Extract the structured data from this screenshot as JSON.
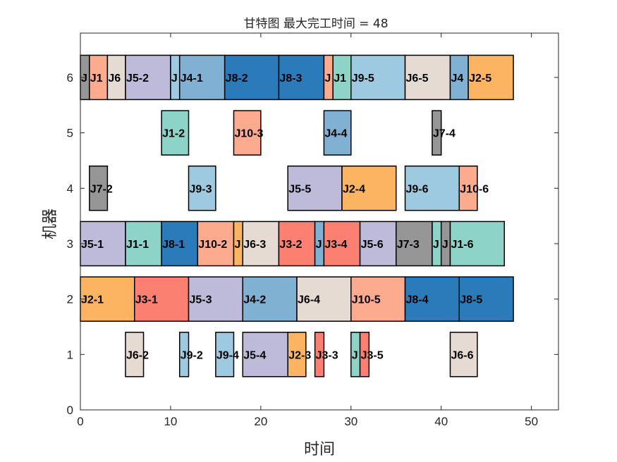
{
  "chart_data": {
    "type": "bar",
    "orientation": "horizontal-gantt",
    "title": "甘特图 最大完工时间 = 48",
    "xlabel": "时间",
    "ylabel": "机器",
    "xlim": [
      0,
      53
    ],
    "ylim": [
      0,
      6.8
    ],
    "xticks": [
      0,
      10,
      20,
      30,
      40,
      50
    ],
    "yticks": [
      0,
      1,
      2,
      3,
      4,
      5,
      6
    ],
    "bar_height": 0.8,
    "grid": false,
    "job_colors": {
      "J1": "#8dd3c7",
      "J2": "#fdb462",
      "J3": "#fb8072",
      "J4": "#80b1d3",
      "J5": "#bebada",
      "J6": "#e6dbd3",
      "J7": "#969696",
      "J8": "#2b7bba",
      "J9": "#9ecae1",
      "J10": "#fcab8f"
    },
    "tasks": [
      {
        "machine": 6,
        "job": "J7",
        "label": "J",
        "start": 0,
        "end": 1
      },
      {
        "machine": 6,
        "job": "J10",
        "label": "J1",
        "start": 1,
        "end": 3
      },
      {
        "machine": 6,
        "job": "J6",
        "label": "J6",
        "start": 3,
        "end": 5
      },
      {
        "machine": 6,
        "job": "J5",
        "label": "J5-2",
        "start": 5,
        "end": 10
      },
      {
        "machine": 6,
        "job": "J9",
        "label": "J",
        "start": 10,
        "end": 11
      },
      {
        "machine": 6,
        "job": "J4",
        "label": "J4-1",
        "start": 11,
        "end": 16
      },
      {
        "machine": 6,
        "job": "J8",
        "label": "J8-2",
        "start": 16,
        "end": 22
      },
      {
        "machine": 6,
        "job": "J8",
        "label": "J8-3",
        "start": 22,
        "end": 27
      },
      {
        "machine": 6,
        "job": "J10",
        "label": "J",
        "start": 27,
        "end": 28
      },
      {
        "machine": 6,
        "job": "J1",
        "label": "J1",
        "start": 28,
        "end": 30
      },
      {
        "machine": 6,
        "job": "J9",
        "label": "J9-5",
        "start": 30,
        "end": 36
      },
      {
        "machine": 6,
        "job": "J6",
        "label": "J6-5",
        "start": 36,
        "end": 41
      },
      {
        "machine": 6,
        "job": "J4",
        "label": "J4",
        "start": 41,
        "end": 43
      },
      {
        "machine": 6,
        "job": "J2",
        "label": "J2-5",
        "start": 43,
        "end": 48
      },
      {
        "machine": 5,
        "job": "J1",
        "label": "J1-2",
        "start": 9,
        "end": 12
      },
      {
        "machine": 5,
        "job": "J10",
        "label": "J10-3",
        "start": 17,
        "end": 20
      },
      {
        "machine": 5,
        "job": "J4",
        "label": "J4-4",
        "start": 27,
        "end": 30
      },
      {
        "machine": 5,
        "job": "J7",
        "label": "J7-4",
        "start": 39,
        "end": 40
      },
      {
        "machine": 4,
        "job": "J7",
        "label": "J7-2",
        "start": 1,
        "end": 3
      },
      {
        "machine": 4,
        "job": "J9",
        "label": "J9-3",
        "start": 12,
        "end": 15
      },
      {
        "machine": 4,
        "job": "J5",
        "label": "J5-5",
        "start": 23,
        "end": 29
      },
      {
        "machine": 4,
        "job": "J2",
        "label": "J2-4",
        "start": 29,
        "end": 35
      },
      {
        "machine": 4,
        "job": "J9",
        "label": "J9-6",
        "start": 36,
        "end": 42
      },
      {
        "machine": 4,
        "job": "J10",
        "label": "J10-6",
        "start": 42,
        "end": 44
      },
      {
        "machine": 3,
        "job": "J5",
        "label": "J5-1",
        "start": 0,
        "end": 5
      },
      {
        "machine": 3,
        "job": "J1",
        "label": "J1-1",
        "start": 5,
        "end": 9
      },
      {
        "machine": 3,
        "job": "J8",
        "label": "J8-1",
        "start": 9,
        "end": 13
      },
      {
        "machine": 3,
        "job": "J10",
        "label": "J10-2",
        "start": 13,
        "end": 17
      },
      {
        "machine": 3,
        "job": "J2",
        "label": "J",
        "start": 17,
        "end": 18
      },
      {
        "machine": 3,
        "job": "J6",
        "label": "J6-3",
        "start": 18,
        "end": 22
      },
      {
        "machine": 3,
        "job": "J3",
        "label": "J3-2",
        "start": 22,
        "end": 26
      },
      {
        "machine": 3,
        "job": "J4",
        "label": "J",
        "start": 26,
        "end": 27
      },
      {
        "machine": 3,
        "job": "J3",
        "label": "J3-4",
        "start": 27,
        "end": 31
      },
      {
        "machine": 3,
        "job": "J5",
        "label": "J5-6",
        "start": 31,
        "end": 35
      },
      {
        "machine": 3,
        "job": "J7",
        "label": "J7-3",
        "start": 35,
        "end": 39
      },
      {
        "machine": 3,
        "job": "J1",
        "label": "J",
        "start": 39,
        "end": 40
      },
      {
        "machine": 3,
        "job": "J7",
        "label": "J",
        "start": 40,
        "end": 41
      },
      {
        "machine": 3,
        "job": "J1",
        "label": "J1-6",
        "start": 41,
        "end": 47
      },
      {
        "machine": 2,
        "job": "J2",
        "label": "J2-1",
        "start": 0,
        "end": 6
      },
      {
        "machine": 2,
        "job": "J3",
        "label": "J3-1",
        "start": 6,
        "end": 12
      },
      {
        "machine": 2,
        "job": "J5",
        "label": "J5-3",
        "start": 12,
        "end": 18
      },
      {
        "machine": 2,
        "job": "J4",
        "label": "J4-2",
        "start": 18,
        "end": 24
      },
      {
        "machine": 2,
        "job": "J6",
        "label": "J6-4",
        "start": 24,
        "end": 30
      },
      {
        "machine": 2,
        "job": "J10",
        "label": "J10-5",
        "start": 30,
        "end": 36
      },
      {
        "machine": 2,
        "job": "J8",
        "label": "J8-4",
        "start": 36,
        "end": 42
      },
      {
        "machine": 2,
        "job": "J8",
        "label": "J8-5",
        "start": 42,
        "end": 48
      },
      {
        "machine": 1,
        "job": "J6",
        "label": "J6-2",
        "start": 5,
        "end": 7
      },
      {
        "machine": 1,
        "job": "J9",
        "label": "J9-2",
        "start": 11,
        "end": 12
      },
      {
        "machine": 1,
        "job": "J9",
        "label": "J9-4",
        "start": 15,
        "end": 17
      },
      {
        "machine": 1,
        "job": "J5",
        "label": "J5-4",
        "start": 18,
        "end": 23
      },
      {
        "machine": 1,
        "job": "J2",
        "label": "J2-3",
        "start": 23,
        "end": 25
      },
      {
        "machine": 1,
        "job": "J3",
        "label": "J3-3",
        "start": 26,
        "end": 27
      },
      {
        "machine": 1,
        "job": "J1",
        "label": "J",
        "start": 30,
        "end": 31
      },
      {
        "machine": 1,
        "job": "J3",
        "label": "J3-5",
        "start": 31,
        "end": 32
      },
      {
        "machine": 1,
        "job": "J6",
        "label": "J6-6",
        "start": 41,
        "end": 44
      }
    ]
  }
}
